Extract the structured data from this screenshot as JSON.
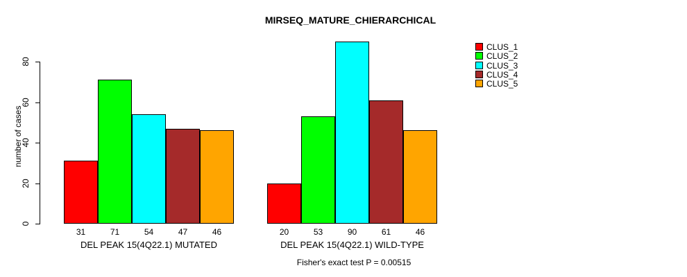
{
  "title": "MIRSEQ_MATURE_CHIERARCHICAL",
  "caption": "Fisher's exact test P = 0.00515",
  "chart_data": {
    "type": "bar",
    "title": "MIRSEQ_MATURE_CHIERARCHICAL",
    "xlabel": "",
    "ylabel": "number of cases",
    "ylim": [
      0,
      90
    ],
    "yticks": [
      0,
      20,
      40,
      60,
      80
    ],
    "grid": false,
    "legend_position": "right",
    "legend": [
      {
        "label": "CLUS_1",
        "color": "#FF0000"
      },
      {
        "label": "CLUS_2",
        "color": "#00FF00"
      },
      {
        "label": "CLUS_3",
        "color": "#00FFFF"
      },
      {
        "label": "CLUS_4",
        "color": "#A52A2A"
      },
      {
        "label": "CLUS_5",
        "color": "#FFA500"
      }
    ],
    "groups": [
      {
        "category": "DEL PEAK 15(4Q22.1) MUTATED",
        "values": [
          31,
          71,
          54,
          47,
          46
        ]
      },
      {
        "category": "DEL PEAK 15(4Q22.1) WILD-TYPE",
        "values": [
          20,
          53,
          90,
          61,
          46
        ]
      }
    ],
    "bar_value_labels_shown": true,
    "annotation": "Fisher's exact test P = 0.00515"
  }
}
